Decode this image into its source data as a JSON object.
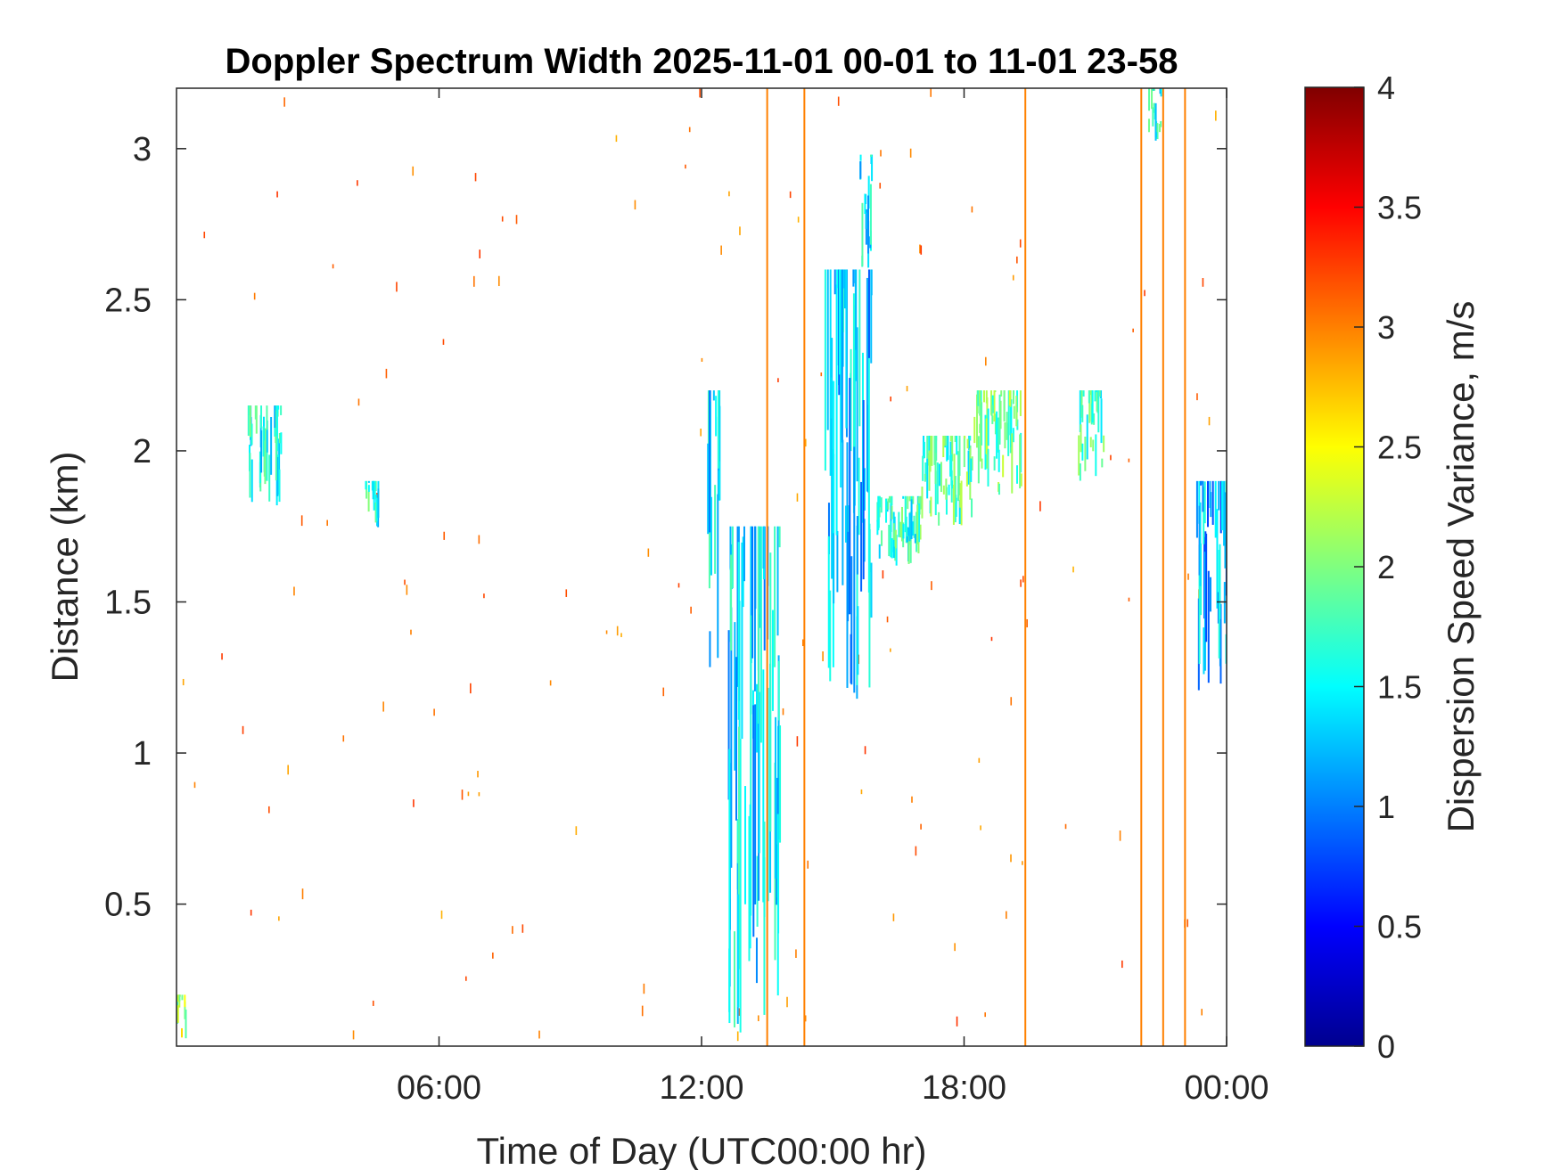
{
  "chart_data": {
    "type": "heatmap",
    "title": "Doppler Spectrum Width 2025-11-01 00-01 to 11-01 23-58",
    "xlabel": "Time of Day (UTC00:00 hr)",
    "ylabel": "Distance (km)",
    "colorbar_label": "Dispersion Speed Variance, m/s",
    "colormap": "jet",
    "xlim": [
      0,
      24
    ],
    "ylim": [
      0.03,
      3.2
    ],
    "clim": [
      0,
      4
    ],
    "x_ticks": [
      6,
      12,
      18,
      24
    ],
    "x_tick_labels": [
      "06:00",
      "12:00",
      "18:00",
      "00:00"
    ],
    "y_ticks": [
      0.5,
      1,
      1.5,
      2,
      2.5,
      3
    ],
    "y_tick_labels": [
      "0.5",
      "1",
      "1.5",
      "2",
      "2.5",
      "3"
    ],
    "colorbar_ticks": [
      0,
      0.5,
      1,
      1.5,
      2,
      2.5,
      3,
      3.5,
      4
    ],
    "colorbar_tick_labels": [
      "0",
      "0.5",
      "1",
      "1.5",
      "2",
      "2.5",
      "3",
      "3.5",
      "4"
    ],
    "grid": false,
    "clusters": [
      {
        "x": [
          12.1,
          12.4
        ],
        "y": [
          1.2,
          2.2
        ],
        "value": 1.4
      },
      {
        "x": [
          12.6,
          13.8
        ],
        "y": [
          0.03,
          1.75
        ],
        "value": 1.4
      },
      {
        "x": [
          14.8,
          15.9
        ],
        "y": [
          1.1,
          2.6
        ],
        "value": 1.3
      },
      {
        "x": [
          15.6,
          15.9
        ],
        "y": [
          2.6,
          2.98
        ],
        "value": 1.5
      },
      {
        "x": [
          15.9,
          17.0
        ],
        "y": [
          1.62,
          1.85
        ],
        "value": 1.7
      },
      {
        "x": [
          17.0,
          18.2
        ],
        "y": [
          1.75,
          2.05
        ],
        "value": 1.8
      },
      {
        "x": [
          18.2,
          19.3
        ],
        "y": [
          1.85,
          2.2
        ],
        "value": 1.9
      },
      {
        "x": [
          20.6,
          21.2
        ],
        "y": [
          1.9,
          2.2
        ],
        "value": 1.7
      },
      {
        "x": [
          23.3,
          24.0
        ],
        "y": [
          1.2,
          1.9
        ],
        "value": 1.2
      },
      {
        "x": [
          4.3,
          4.6
        ],
        "y": [
          1.7,
          1.9
        ],
        "value": 1.6
      },
      {
        "x": [
          1.6,
          2.4
        ],
        "y": [
          1.8,
          2.15
        ],
        "value": 1.6
      },
      {
        "x": [
          22.2,
          22.5
        ],
        "y": [
          3.0,
          3.2
        ],
        "value": 1.6
      },
      {
        "x": [
          0.0,
          0.2
        ],
        "y": [
          0.03,
          0.2
        ],
        "value": 2.2
      }
    ],
    "vertical_lines": [
      {
        "x": 13.5,
        "value": 3.0
      },
      {
        "x": 14.35,
        "value": 3.0
      },
      {
        "x": 19.4,
        "value": 3.0
      },
      {
        "x": 22.05,
        "value": 3.0
      },
      {
        "x": 22.55,
        "value": 3.0
      },
      {
        "x": 23.05,
        "value": 3.0
      }
    ],
    "background_noise_value": 3.0
  }
}
